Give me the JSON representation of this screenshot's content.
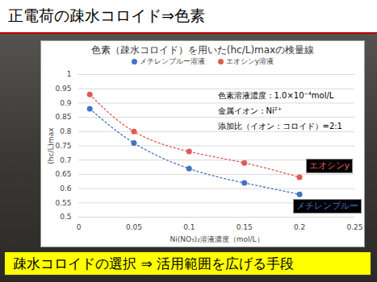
{
  "slide": {
    "title": "正電荷の疎水コロイド⇒色素",
    "caption": "疎水コロイドの選択 ⇒ 活用範囲を広げる手段"
  },
  "chart_data": {
    "type": "scatter",
    "title": "色素（疎水コロイド）を用いた(hc/L)maxの検量線",
    "x_label": "Ni(NO₃)₂溶液濃度（mol/L）",
    "y_label": "(hc/L)max",
    "x": [
      0.01,
      0.05,
      0.1,
      0.15,
      0.2
    ],
    "series": [
      {
        "name": "メチレンブルー溶液",
        "label": "メチレンブルー",
        "color": "#4472c4",
        "marker": "circle",
        "line_style": "dotted",
        "values": [
          0.88,
          0.76,
          0.67,
          0.62,
          0.58
        ]
      },
      {
        "name": "エオシンy溶液",
        "label": "エオシンy",
        "color": "#e05a55",
        "marker": "circle",
        "line_style": "dotted",
        "values": [
          0.93,
          0.8,
          0.73,
          0.69,
          0.64
        ]
      }
    ],
    "xlim": [
      0,
      0.25
    ],
    "xticks": [
      0,
      0.05,
      0.1,
      0.15,
      0.2,
      0.25
    ],
    "ylim": [
      0.5,
      1
    ],
    "yticks": [
      0.5,
      0.55,
      0.6,
      0.65,
      0.7,
      0.75,
      0.8,
      0.85,
      0.9,
      0.95,
      1
    ],
    "grid": true,
    "legend": "top",
    "annotations": [
      "色素溶液濃度：1.0×10⁻⁴mol/L",
      "金属イオン：Ni²⁺",
      "添加比（イオン：コロイド）=2:1"
    ]
  }
}
